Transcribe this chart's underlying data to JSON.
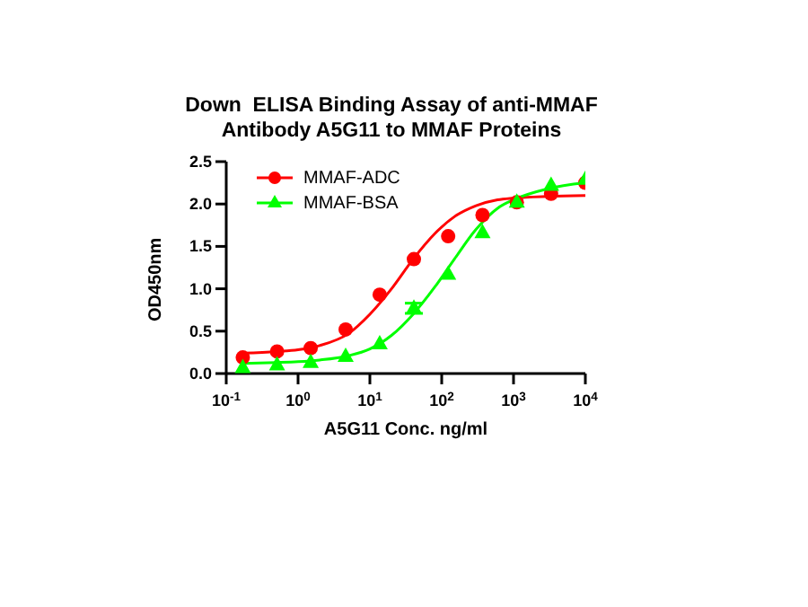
{
  "chart_data": {
    "type": "scatter",
    "title": "Down  ELISA Binding Assay of anti-MMAF Antibody A5G11 to MMAF Proteins",
    "xlabel": "A5G11 Conc. ng/ml",
    "ylabel": "OD450nm",
    "log": "x",
    "grid": false,
    "legend": "top left",
    "xlim": [
      0.1,
      10000
    ],
    "xticks": [
      {
        "value": 0.1,
        "label": "10$^{-1}$"
      },
      {
        "value": 1,
        "label": "10$^{0}$"
      },
      {
        "value": 10,
        "label": "10$^{1}$"
      },
      {
        "value": 100,
        "label": "10$^{2}$"
      },
      {
        "value": 1000,
        "label": "10$^{3}$"
      },
      {
        "value": 10000,
        "label": "10$^{4}$"
      }
    ],
    "ylim": [
      0,
      2.5
    ],
    "yticks": [
      {
        "value": 0,
        "label": "0.0"
      },
      {
        "value": 0.5,
        "label": "0.5"
      },
      {
        "value": 1,
        "label": "1.0"
      },
      {
        "value": 1.5,
        "label": "1.5"
      },
      {
        "value": 2,
        "label": "2.0"
      },
      {
        "value": 2.5,
        "label": "2.5"
      }
    ],
    "series": [
      {
        "name": "MMAF-ADC",
        "marker": "circle",
        "color": "#ff0000",
        "x": [
          0.17,
          0.51,
          1.5,
          4.6,
          13.7,
          41,
          123,
          370,
          1111,
          3333,
          10000
        ],
        "values": [
          0.19,
          0.26,
          0.3,
          0.52,
          0.93,
          1.35,
          1.62,
          1.87,
          2.02,
          2.12,
          2.25
        ]
      },
      {
        "name": "MMAF-BSA",
        "marker": "triangle",
        "color": "#00ff00",
        "x": [
          0.17,
          0.51,
          1.5,
          4.6,
          13.7,
          41,
          123,
          370,
          1111,
          3333,
          10000
        ],
        "values": [
          0.07,
          0.1,
          0.13,
          0.2,
          0.35,
          0.77,
          1.17,
          1.66,
          2.02,
          2.22,
          2.29
        ],
        "errors": [
          null,
          null,
          null,
          null,
          null,
          0.06,
          null,
          null,
          null,
          null,
          null
        ]
      },
      {
        "type": "line",
        "marker": "none",
        "color": "#ff0000",
        "x": [
          0.17,
          0.5,
          1,
          2,
          5,
          10,
          20,
          40,
          80,
          150,
          300,
          600,
          1000,
          3000,
          10000
        ],
        "values": [
          0.24,
          0.26,
          0.28,
          0.33,
          0.47,
          0.7,
          1.0,
          1.35,
          1.65,
          1.85,
          1.98,
          2.05,
          2.07,
          2.09,
          2.1
        ]
      },
      {
        "type": "line",
        "marker": "none",
        "color": "#00ff00",
        "x": [
          0.17,
          0.5,
          1,
          2,
          5,
          10,
          20,
          40,
          80,
          150,
          300,
          600,
          1000,
          3000,
          10000
        ],
        "values": [
          0.12,
          0.13,
          0.14,
          0.16,
          0.21,
          0.29,
          0.45,
          0.7,
          1.02,
          1.35,
          1.7,
          1.95,
          2.05,
          2.18,
          2.25
        ]
      }
    ]
  }
}
